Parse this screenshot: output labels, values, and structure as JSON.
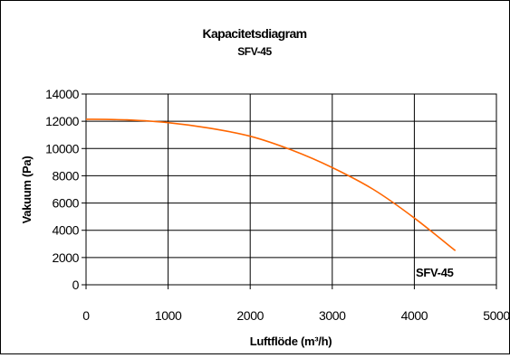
{
  "chart_data": {
    "type": "line",
    "title": "Kapacitetsdiagram",
    "subtitle": "SFV-45",
    "xlabel": "Luftflöde (m³/h)",
    "ylabel": "Vakuum  (Pa)",
    "xlim": [
      0,
      5000
    ],
    "ylim": [
      0,
      14000
    ],
    "x_ticks": [
      0,
      1000,
      2000,
      3000,
      4000,
      5000
    ],
    "y_ticks": [
      0,
      2000,
      4000,
      6000,
      8000,
      10000,
      12000,
      14000
    ],
    "x_tick_labels": [
      "0",
      "1000",
      "2000",
      "3000",
      "4000",
      "5000"
    ],
    "y_tick_labels": [
      "0",
      "2000",
      "4000",
      "6000",
      "8000",
      "10000",
      "12000",
      "14000"
    ],
    "grid": true,
    "series": [
      {
        "name": "SFV-45",
        "color": "#ff6600",
        "x": [
          0,
          500,
          1000,
          1500,
          2000,
          2500,
          3000,
          3500,
          4000,
          4500
        ],
        "y": [
          12150,
          12100,
          11900,
          11500,
          10900,
          9900,
          8600,
          7000,
          4900,
          2500
        ]
      }
    ],
    "series_label": "SFV-45"
  }
}
